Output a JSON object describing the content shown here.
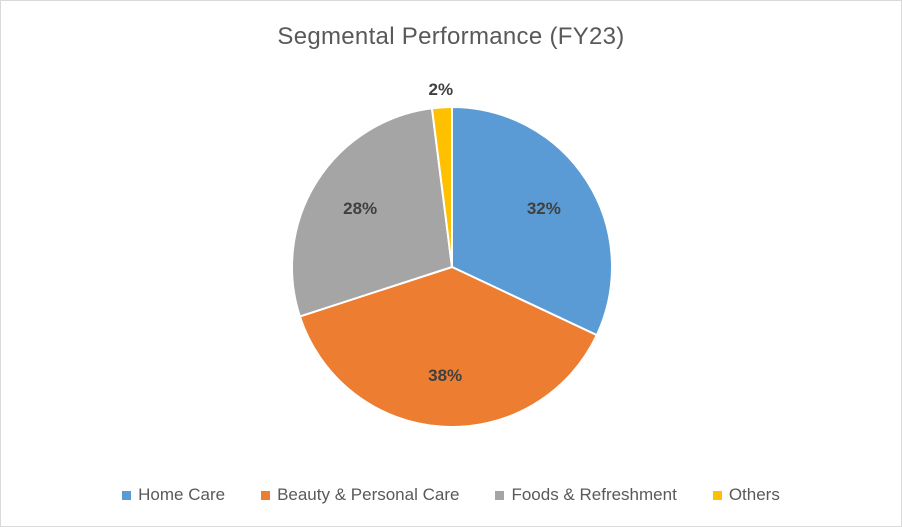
{
  "chart_data": {
    "type": "pie",
    "title": "Segmental Performance (FY23)",
    "categories": [
      "Home Care",
      "Beauty & Personal Care",
      "Foods & Refreshment",
      "Others"
    ],
    "values": [
      32,
      38,
      28,
      2
    ],
    "labels": [
      "32%",
      "38%",
      "28%",
      "2%"
    ],
    "colors": [
      "#5b9bd5",
      "#ed7d31",
      "#a5a5a5",
      "#ffc000"
    ],
    "legend_position": "bottom"
  }
}
